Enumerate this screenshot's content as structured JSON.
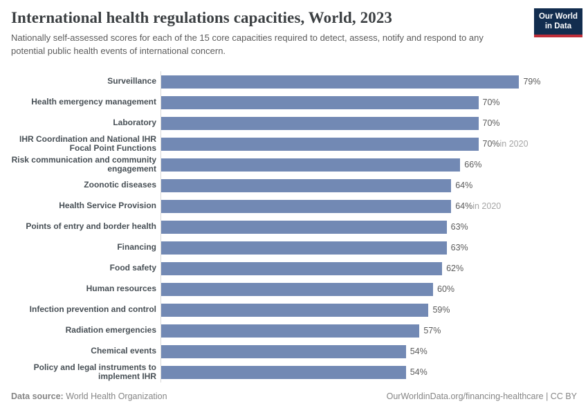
{
  "header": {
    "title": "International health regulations capacities, World, 2023",
    "subtitle": "Nationally self-assessed scores for each of the 15 core capacities required to detect, assess, notify and respond to any potential public health events of international concern.",
    "logo": {
      "line1": "Our World",
      "line2": "in Data"
    }
  },
  "chart_data": {
    "type": "bar",
    "orientation": "horizontal",
    "title": "International health regulations capacities, World, 2023",
    "unit": "%",
    "grid": false,
    "xlim": [
      0,
      94
    ],
    "value_label_position": "end-of-bar",
    "bar_color": "#7289b4",
    "categories": [
      "Surveillance",
      "Health emergency management",
      "Laboratory",
      "IHR Coordination and National IHR Focal Point Functions",
      "Risk communication and community engagement",
      "Zoonotic diseases",
      "Health Service Provision",
      "Points of entry and border health",
      "Financing",
      "Food safety",
      "Human resources",
      "Infection prevention and control",
      "Radiation emergencies",
      "Chemical events",
      "Policy and legal instruments to implement IHR"
    ],
    "values": [
      79,
      70,
      70,
      70,
      66,
      64,
      64,
      63,
      63,
      62,
      60,
      59,
      57,
      54,
      54
    ],
    "value_suffix": "%",
    "notes": [
      "",
      "",
      "",
      "in 2020",
      "",
      "",
      "in 2020",
      "",
      "",
      "",
      "",
      "",
      "",
      "",
      ""
    ]
  },
  "footer": {
    "datasource_label": "Data source:",
    "datasource_value": " World Health Organization",
    "credit": "OurWorldinData.org/financing-healthcare | CC BY"
  },
  "colors": {
    "bar": "#7289b4",
    "axis_line": "#d8d8d8",
    "category_label": "#474f55",
    "value_label": "#5b5b5b",
    "value_note": "#a5a5a5",
    "logo_navy": "#122d4f",
    "logo_red": "#bf2e39"
  }
}
